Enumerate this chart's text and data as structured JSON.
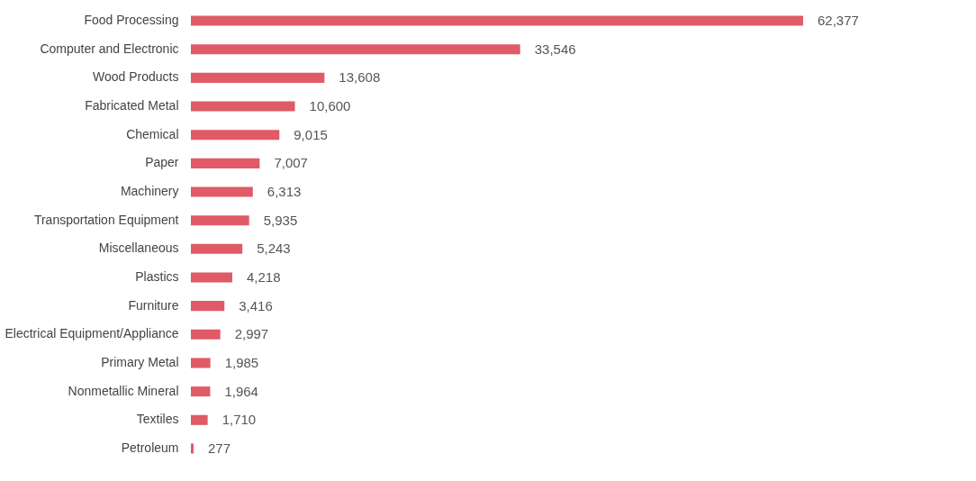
{
  "chart_data": {
    "type": "bar",
    "orientation": "horizontal",
    "color": "#e05a68",
    "categories": [
      "Food Processing",
      "Computer and Electronic",
      "Wood Products",
      "Fabricated Metal",
      "Chemical",
      "Paper",
      "Machinery",
      "Transportation Equipment",
      "Miscellaneous",
      "Plastics",
      "Furniture",
      "Electrical Equipment/Appliance",
      "Primary Metal",
      "Nonmetallic Mineral",
      "Textiles",
      "Petroleum"
    ],
    "values": [
      62377,
      33546,
      13608,
      10600,
      9015,
      7007,
      6313,
      5935,
      5243,
      4218,
      3416,
      2997,
      1985,
      1964,
      1710,
      277
    ],
    "value_labels": [
      "62,377",
      "33,546",
      "13,608",
      "10,600",
      "9,015",
      "7,007",
      "6,313",
      "5,935",
      "5,243",
      "4,218",
      "3,416",
      "2,997",
      "1,985",
      "1,964",
      "1,710",
      "277"
    ]
  }
}
